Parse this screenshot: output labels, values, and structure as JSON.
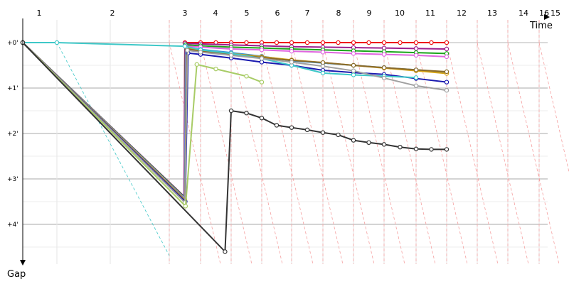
{
  "chart_data": {
    "type": "line",
    "xlabel": "Time",
    "ylabel": "Gap",
    "lap_labels": [
      "1",
      "2",
      "3",
      "4",
      "5",
      "6",
      "7",
      "8",
      "9",
      "10",
      "11",
      "12",
      "13",
      "14",
      "16",
      "15"
    ],
    "y_ticks": [
      "+0'",
      "+1'",
      "+2'",
      "+3'",
      "+4'"
    ],
    "grid": true,
    "series": [
      {
        "color": "#ee1111",
        "x": [
          0,
          3.47,
          3.5,
          4,
          4.5,
          5,
          5.5,
          6,
          6.5,
          7,
          7.5,
          8,
          8.5,
          9,
          9.5,
          10,
          10.5,
          11,
          11.5,
          12
        ],
        "y": [
          0,
          3.4,
          0,
          0,
          0,
          0,
          0,
          0,
          0,
          0,
          0,
          0,
          0,
          0,
          0,
          0,
          0,
          0,
          0,
          0
        ]
      },
      {
        "color": "#9c1f8f",
        "x": [
          0,
          3.47,
          3.5,
          4,
          5,
          6,
          7,
          8,
          9,
          10,
          11,
          12
        ],
        "y": [
          0,
          3.38,
          0.02,
          0.03,
          0.05,
          0.07,
          0.09,
          0.1,
          0.11,
          0.12,
          0.13,
          0.14
        ]
      },
      {
        "color": "#1aa51a",
        "x": [
          0,
          3.48,
          3.52,
          4,
          5,
          6,
          7,
          8,
          9,
          10,
          11,
          12
        ],
        "y": [
          0,
          3.4,
          0.05,
          0.07,
          0.1,
          0.12,
          0.14,
          0.16,
          0.18,
          0.2,
          0.22,
          0.24
        ]
      },
      {
        "color": "#e066e0",
        "x": [
          0,
          3.48,
          3.53,
          4,
          5,
          6,
          7,
          8,
          9,
          10,
          11,
          12
        ],
        "y": [
          0,
          3.42,
          0.08,
          0.1,
          0.14,
          0.16,
          0.19,
          0.21,
          0.24,
          0.26,
          0.28,
          0.31
        ]
      },
      {
        "color": "#2f8fd6",
        "x": [
          0,
          3.49,
          3.54,
          4,
          5,
          6,
          7,
          8,
          9,
          10,
          11,
          12
        ],
        "y": [
          0,
          3.44,
          0.1,
          0.15,
          0.22,
          0.3,
          0.4,
          0.45,
          0.5,
          0.55,
          0.6,
          0.65
        ]
      },
      {
        "color": "#d6a313",
        "x": [
          0,
          3.5,
          3.56,
          4,
          5,
          6,
          7,
          8,
          9,
          10,
          11,
          12
        ],
        "y": [
          0,
          3.46,
          0.12,
          0.17,
          0.24,
          0.31,
          0.38,
          0.44,
          0.5,
          0.56,
          0.62,
          0.68
        ]
      },
      {
        "color": "#8a6a2a",
        "x": [
          0,
          3.5,
          3.57,
          4,
          5,
          6,
          7,
          8,
          9,
          10,
          11,
          12
        ],
        "y": [
          0,
          3.48,
          0.14,
          0.19,
          0.26,
          0.33,
          0.39,
          0.44,
          0.5,
          0.55,
          0.6,
          0.64
        ]
      },
      {
        "color": "#1a1ab0",
        "x": [
          0,
          3.51,
          3.6,
          4,
          5,
          6,
          7,
          8,
          9,
          10,
          11,
          12
        ],
        "y": [
          0,
          3.5,
          0.23,
          0.26,
          0.34,
          0.43,
          0.5,
          0.61,
          0.66,
          0.7,
          0.79,
          0.87
        ]
      },
      {
        "color": "#3ec8c8",
        "x": [
          0,
          1,
          3.5,
          4,
          5,
          6,
          7,
          8,
          9,
          10,
          11
        ],
        "y": [
          0,
          0,
          0.08,
          0.16,
          0.24,
          0.35,
          0.5,
          0.67,
          0.71,
          0.74,
          0.77
        ]
      },
      {
        "color": "#a0a0a0",
        "x": [
          0,
          3.5,
          3.58,
          4,
          5,
          6,
          7,
          8,
          9,
          10,
          11,
          12
        ],
        "y": [
          0,
          3.52,
          0.17,
          0.21,
          0.28,
          0.35,
          0.43,
          0.52,
          0.62,
          0.78,
          0.95,
          1.05
        ]
      },
      {
        "color": "#a8cc66",
        "x": [
          0,
          3.52,
          3.88,
          4.5,
          5.5,
          6
        ],
        "y": [
          0,
          3.6,
          0.48,
          0.58,
          0.74,
          0.87
        ]
      },
      {
        "color": "#333333",
        "x": [
          0,
          4.8,
          5,
          5.5,
          6,
          6.5,
          7,
          7.5,
          8,
          8.5,
          9,
          9.5,
          10,
          10.5,
          11,
          11.5,
          12
        ],
        "y": [
          0,
          4.6,
          1.5,
          1.55,
          1.66,
          1.82,
          1.87,
          1.92,
          1.98,
          2.03,
          2.15,
          2.2,
          2.24,
          2.3,
          2.34,
          2.35,
          2.35
        ]
      }
    ]
  }
}
